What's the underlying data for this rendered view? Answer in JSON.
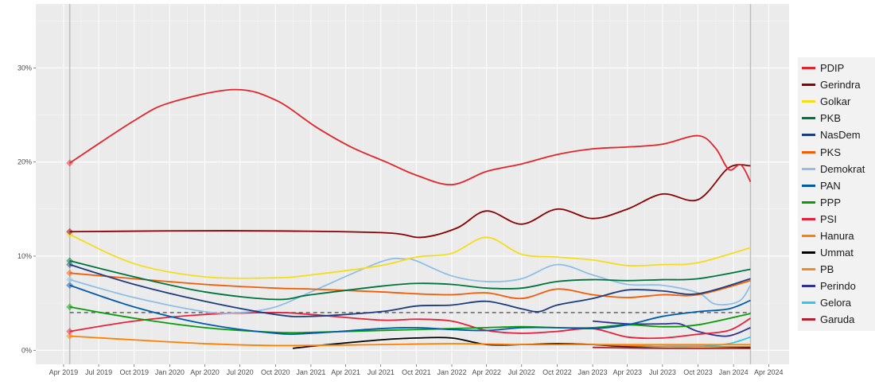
{
  "chart_data": {
    "type": "line",
    "title": "",
    "xlabel": "",
    "ylabel": "",
    "xlim": [
      "2019-01-19",
      "2024-05-24"
    ],
    "ylim": [
      -1.5,
      36.8
    ],
    "y_ticks": [
      {
        "v": 0,
        "label": "0%"
      },
      {
        "v": 10,
        "label": "10%"
      },
      {
        "v": 20,
        "label": "20%"
      },
      {
        "v": 30,
        "label": "30%"
      }
    ],
    "x_ticks": [
      {
        "d": "2019-04-01",
        "label": "Apr 2019"
      },
      {
        "d": "2019-07-01",
        "label": "Jul 2019"
      },
      {
        "d": "2019-10-01",
        "label": "Oct 2019"
      },
      {
        "d": "2020-01-01",
        "label": "Jan 2020"
      },
      {
        "d": "2020-04-01",
        "label": "Apr 2020"
      },
      {
        "d": "2020-07-01",
        "label": "Jul 2020"
      },
      {
        "d": "2020-10-01",
        "label": "Oct 2020"
      },
      {
        "d": "2021-01-01",
        "label": "Jan 2021"
      },
      {
        "d": "2021-04-01",
        "label": "Apr 2021"
      },
      {
        "d": "2021-07-01",
        "label": "Jul 2021"
      },
      {
        "d": "2021-10-01",
        "label": "Oct 2021"
      },
      {
        "d": "2022-01-01",
        "label": "Jan 2022"
      },
      {
        "d": "2022-04-01",
        "label": "Apr 2022"
      },
      {
        "d": "2022-07-01",
        "label": "Jul 2022"
      },
      {
        "d": "2022-10-01",
        "label": "Oct 2022"
      },
      {
        "d": "2023-01-01",
        "label": "Jan 2023"
      },
      {
        "d": "2023-04-01",
        "label": "Apr 2023"
      },
      {
        "d": "2023-07-01",
        "label": "Jul 2023"
      },
      {
        "d": "2023-10-01",
        "label": "Oct 2023"
      },
      {
        "d": "2024-01-01",
        "label": "Jan 2024"
      },
      {
        "d": "2024-04-01",
        "label": "Apr 2024"
      }
    ],
    "grid": true,
    "legend_position": "right",
    "threshold": {
      "value": 4,
      "from": "2019-04-17",
      "to": "2024-02-14",
      "style": "dashed"
    },
    "election_lines": [
      "2019-04-17",
      "2024-02-14"
    ],
    "series": [
      {
        "name": "PDIP",
        "color": "#e3252a",
        "points": [
          [
            "2019-04-17",
            19.9
          ],
          [
            "2019-10-01",
            24.4
          ],
          [
            "2020-01-01",
            26.3
          ],
          [
            "2020-06-15",
            27.7
          ],
          [
            "2020-10-01",
            26.6
          ],
          [
            "2021-01-15",
            23.7
          ],
          [
            "2021-04-15",
            21.6
          ],
          [
            "2021-07-15",
            20.0
          ],
          [
            "2021-10-01",
            18.6
          ],
          [
            "2022-01-01",
            17.6
          ],
          [
            "2022-04-01",
            19.0
          ],
          [
            "2022-07-01",
            19.8
          ],
          [
            "2022-10-01",
            20.8
          ],
          [
            "2023-01-01",
            21.4
          ],
          [
            "2023-04-01",
            21.6
          ],
          [
            "2023-07-01",
            21.9
          ],
          [
            "2023-10-01",
            22.8
          ],
          [
            "2023-11-15",
            21.5
          ],
          [
            "2023-12-20",
            19.2
          ],
          [
            "2024-01-20",
            19.7
          ],
          [
            "2024-02-14",
            17.9
          ]
        ]
      },
      {
        "name": "Gerindra",
        "color": "#8b0000",
        "points": [
          [
            "2019-04-17",
            12.6
          ],
          [
            "2020-06-01",
            12.7
          ],
          [
            "2021-07-01",
            12.5
          ],
          [
            "2021-10-15",
            12.0
          ],
          [
            "2022-01-15",
            13.0
          ],
          [
            "2022-04-01",
            14.8
          ],
          [
            "2022-07-01",
            13.4
          ],
          [
            "2022-10-01",
            15.0
          ],
          [
            "2023-01-01",
            14.0
          ],
          [
            "2023-04-01",
            15.0
          ],
          [
            "2023-07-01",
            16.6
          ],
          [
            "2023-10-01",
            16.0
          ],
          [
            "2023-12-20",
            19.4
          ],
          [
            "2024-02-14",
            19.6
          ]
        ]
      },
      {
        "name": "Golkar",
        "color": "#f5dc1c",
        "points": [
          [
            "2019-04-17",
            12.3
          ],
          [
            "2019-10-01",
            9.2
          ],
          [
            "2020-04-01",
            7.8
          ],
          [
            "2020-10-01",
            7.7
          ],
          [
            "2021-01-01",
            8.0
          ],
          [
            "2021-07-01",
            9.0
          ],
          [
            "2021-10-01",
            9.9
          ],
          [
            "2022-01-01",
            10.3
          ],
          [
            "2022-04-01",
            12.0
          ],
          [
            "2022-07-01",
            10.2
          ],
          [
            "2022-10-01",
            9.9
          ],
          [
            "2023-01-01",
            9.6
          ],
          [
            "2023-04-01",
            9.0
          ],
          [
            "2023-07-01",
            9.1
          ],
          [
            "2023-10-01",
            9.3
          ],
          [
            "2024-02-14",
            10.9
          ]
        ]
      },
      {
        "name": "PKB",
        "color": "#00733f",
        "points": [
          [
            "2019-04-17",
            9.5
          ],
          [
            "2019-10-01",
            7.8
          ],
          [
            "2020-04-01",
            6.2
          ],
          [
            "2020-10-01",
            5.4
          ],
          [
            "2021-01-01",
            5.9
          ],
          [
            "2021-07-01",
            6.8
          ],
          [
            "2021-10-01",
            7.1
          ],
          [
            "2022-01-01",
            7.0
          ],
          [
            "2022-04-01",
            6.6
          ],
          [
            "2022-07-01",
            6.6
          ],
          [
            "2022-10-01",
            7.3
          ],
          [
            "2023-01-01",
            7.5
          ],
          [
            "2023-04-01",
            7.4
          ],
          [
            "2023-07-01",
            7.5
          ],
          [
            "2023-10-01",
            7.6
          ],
          [
            "2024-02-14",
            8.6
          ]
        ]
      },
      {
        "name": "NasDem",
        "color": "#1f3b80",
        "points": [
          [
            "2019-04-17",
            9.1
          ],
          [
            "2019-10-01",
            7.0
          ],
          [
            "2020-04-01",
            5.2
          ],
          [
            "2020-10-01",
            3.8
          ],
          [
            "2021-01-01",
            3.6
          ],
          [
            "2021-07-01",
            4.1
          ],
          [
            "2021-10-01",
            4.7
          ],
          [
            "2022-01-01",
            4.8
          ],
          [
            "2022-04-01",
            5.2
          ],
          [
            "2022-07-01",
            4.4
          ],
          [
            "2022-08-15",
            4.1
          ],
          [
            "2022-10-01",
            4.8
          ],
          [
            "2023-01-01",
            5.5
          ],
          [
            "2023-04-01",
            6.4
          ],
          [
            "2023-07-01",
            6.3
          ],
          [
            "2023-10-01",
            6.0
          ],
          [
            "2024-02-14",
            7.6
          ]
        ]
      },
      {
        "name": "PKS",
        "color": "#f25c05",
        "points": [
          [
            "2019-04-17",
            8.2
          ],
          [
            "2019-10-01",
            7.6
          ],
          [
            "2020-04-01",
            7.0
          ],
          [
            "2020-10-01",
            6.6
          ],
          [
            "2021-01-01",
            6.5
          ],
          [
            "2021-07-01",
            6.2
          ],
          [
            "2021-10-01",
            6.0
          ],
          [
            "2022-01-01",
            5.9
          ],
          [
            "2022-04-01",
            6.1
          ],
          [
            "2022-07-01",
            5.5
          ],
          [
            "2022-10-01",
            6.5
          ],
          [
            "2023-01-01",
            5.9
          ],
          [
            "2023-04-01",
            5.6
          ],
          [
            "2023-07-01",
            5.9
          ],
          [
            "2023-10-01",
            5.9
          ],
          [
            "2024-02-14",
            7.4
          ]
        ]
      },
      {
        "name": "Demokrat",
        "color": "#8fbfe6",
        "points": [
          [
            "2019-04-17",
            7.5
          ],
          [
            "2019-10-01",
            5.6
          ],
          [
            "2020-04-01",
            4.1
          ],
          [
            "2020-07-01",
            4.0
          ],
          [
            "2020-10-01",
            4.6
          ],
          [
            "2021-01-01",
            6.2
          ],
          [
            "2021-07-01",
            9.4
          ],
          [
            "2021-09-01",
            9.7
          ],
          [
            "2021-10-01",
            9.5
          ],
          [
            "2022-01-01",
            7.9
          ],
          [
            "2022-04-01",
            7.3
          ],
          [
            "2022-07-01",
            7.6
          ],
          [
            "2022-10-01",
            9.1
          ],
          [
            "2023-01-01",
            8.0
          ],
          [
            "2023-04-01",
            7.0
          ],
          [
            "2023-07-01",
            6.9
          ],
          [
            "2023-10-01",
            6.1
          ],
          [
            "2023-11-15",
            4.9
          ],
          [
            "2024-01-15",
            5.2
          ],
          [
            "2024-02-14",
            6.9
          ]
        ]
      },
      {
        "name": "PAN",
        "color": "#005bac",
        "points": [
          [
            "2019-04-17",
            6.9
          ],
          [
            "2019-10-01",
            4.6
          ],
          [
            "2020-04-01",
            2.8
          ],
          [
            "2020-10-01",
            1.8
          ],
          [
            "2021-01-01",
            1.8
          ],
          [
            "2021-07-01",
            2.3
          ],
          [
            "2021-10-01",
            2.4
          ],
          [
            "2022-01-01",
            2.2
          ],
          [
            "2022-04-01",
            2.1
          ],
          [
            "2022-07-01",
            2.4
          ],
          [
            "2022-10-01",
            2.4
          ],
          [
            "2023-01-01",
            2.3
          ],
          [
            "2023-04-01",
            2.7
          ],
          [
            "2023-07-01",
            3.6
          ],
          [
            "2023-10-01",
            4.1
          ],
          [
            "2023-12-20",
            4.4
          ],
          [
            "2024-02-14",
            5.3
          ]
        ]
      },
      {
        "name": "PPP",
        "color": "#0a9b0a",
        "points": [
          [
            "2019-04-17",
            4.6
          ],
          [
            "2019-10-01",
            3.4
          ],
          [
            "2020-04-01",
            2.4
          ],
          [
            "2020-10-01",
            1.9
          ],
          [
            "2021-01-01",
            1.9
          ],
          [
            "2021-07-01",
            2.1
          ],
          [
            "2021-10-01",
            2.2
          ],
          [
            "2022-01-01",
            2.3
          ],
          [
            "2022-04-01",
            2.4
          ],
          [
            "2022-07-01",
            2.5
          ],
          [
            "2022-10-01",
            2.4
          ],
          [
            "2023-01-01",
            2.4
          ],
          [
            "2023-04-01",
            2.7
          ],
          [
            "2023-07-01",
            2.5
          ],
          [
            "2023-10-01",
            2.7
          ],
          [
            "2024-02-14",
            3.9
          ]
        ]
      },
      {
        "name": "PSI",
        "color": "#e8203b",
        "points": [
          [
            "2019-04-17",
            2.0
          ],
          [
            "2019-10-01",
            3.1
          ],
          [
            "2020-04-01",
            3.8
          ],
          [
            "2020-10-01",
            4.0
          ],
          [
            "2021-01-01",
            3.8
          ],
          [
            "2021-07-01",
            3.2
          ],
          [
            "2021-10-01",
            3.3
          ],
          [
            "2022-01-01",
            3.1
          ],
          [
            "2022-04-01",
            2.1
          ],
          [
            "2022-07-01",
            1.8
          ],
          [
            "2022-10-01",
            2.0
          ],
          [
            "2023-01-01",
            2.3
          ],
          [
            "2023-04-01",
            1.4
          ],
          [
            "2023-07-01",
            1.3
          ],
          [
            "2023-10-01",
            1.7
          ],
          [
            "2023-12-20",
            2.1
          ],
          [
            "2024-02-14",
            3.4
          ]
        ]
      },
      {
        "name": "Hanura",
        "color": "#ff8000",
        "points": [
          [
            "2019-04-17",
            1.5
          ],
          [
            "2019-10-01",
            1.1
          ],
          [
            "2020-04-01",
            0.7
          ],
          [
            "2020-10-01",
            0.5
          ],
          [
            "2021-07-01",
            0.6
          ],
          [
            "2022-01-01",
            0.7
          ],
          [
            "2022-07-01",
            0.6
          ],
          [
            "2023-01-01",
            0.6
          ],
          [
            "2023-07-01",
            0.4
          ],
          [
            "2024-02-14",
            0.4
          ]
        ]
      },
      {
        "name": "Ummat",
        "color": "#000000",
        "points": [
          [
            "2020-11-15",
            0.2
          ],
          [
            "2021-02-15",
            0.6
          ],
          [
            "2021-07-01",
            1.1
          ],
          [
            "2021-10-01",
            1.3
          ],
          [
            "2022-01-01",
            1.3
          ],
          [
            "2022-04-01",
            0.6
          ],
          [
            "2022-07-01",
            0.6
          ],
          [
            "2022-10-01",
            0.7
          ],
          [
            "2023-01-01",
            0.6
          ],
          [
            "2023-04-01",
            0.4
          ],
          [
            "2023-10-01",
            0.4
          ],
          [
            "2024-02-14",
            0.3
          ]
        ]
      },
      {
        "name": "PB",
        "color": "#f28c1e",
        "points": [
          [
            "2023-01-01",
            0.6
          ],
          [
            "2023-07-01",
            0.6
          ],
          [
            "2024-02-14",
            0.6
          ]
        ]
      },
      {
        "name": "Perindo",
        "color": "#2e3192",
        "points": [
          [
            "2023-01-01",
            3.1
          ],
          [
            "2023-04-01",
            2.8
          ],
          [
            "2023-07-01",
            2.8
          ],
          [
            "2023-08-15",
            2.8
          ],
          [
            "2023-10-01",
            2.0
          ],
          [
            "2023-12-15",
            1.5
          ],
          [
            "2024-02-14",
            2.4
          ]
        ]
      },
      {
        "name": "Gelora",
        "color": "#29c9ee",
        "points": [
          [
            "2023-01-01",
            0.6
          ],
          [
            "2023-07-01",
            0.4
          ],
          [
            "2023-10-01",
            0.4
          ],
          [
            "2023-12-20",
            0.7
          ],
          [
            "2024-02-14",
            1.4
          ]
        ]
      },
      {
        "name": "Garuda",
        "color": "#b22234",
        "points": [
          [
            "2023-01-01",
            0.3
          ],
          [
            "2023-07-01",
            0.2
          ],
          [
            "2024-02-14",
            0.2
          ]
        ]
      }
    ]
  }
}
